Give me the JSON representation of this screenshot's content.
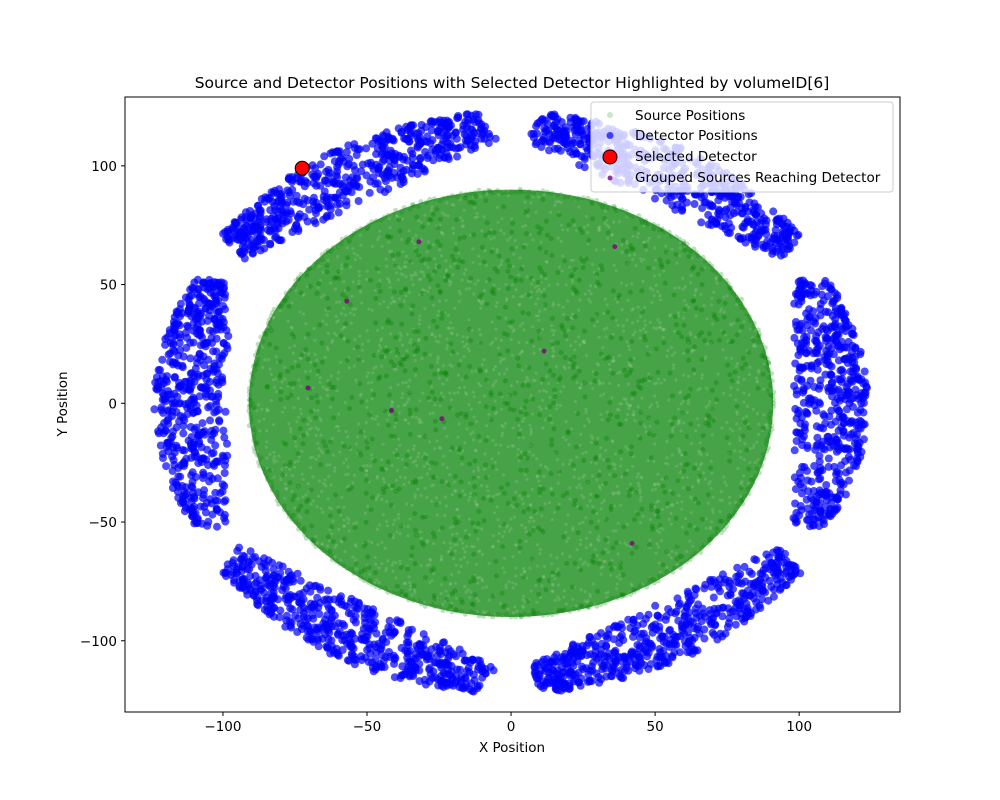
{
  "chart_data": {
    "type": "scatter",
    "title": "Source and Detector Positions with Selected Detector Highlighted by volumeID[6]",
    "xlabel": "X Position",
    "ylabel": "Y Position",
    "xlim": [
      -134,
      135
    ],
    "ylim": [
      -130,
      129
    ],
    "x_ticks": [
      {
        "value": -100,
        "label": "−100"
      },
      {
        "value": -50,
        "label": "−50"
      },
      {
        "value": 0,
        "label": "0"
      },
      {
        "value": 50,
        "label": "50"
      },
      {
        "value": 100,
        "label": "100"
      }
    ],
    "y_ticks": [
      {
        "value": -100,
        "label": "−100"
      },
      {
        "value": -50,
        "label": "−50"
      },
      {
        "value": 0,
        "label": "0"
      },
      {
        "value": 50,
        "label": "50"
      },
      {
        "value": 100,
        "label": "100"
      }
    ],
    "grid": false,
    "legend_position": "top-right",
    "series": [
      {
        "name": "Source Positions",
        "color": "#008000",
        "marker": "circle",
        "opacity": 0.2,
        "distribution": {
          "shape": "filled-ellipse",
          "center": [
            0,
            0
          ],
          "semi_axes": [
            91,
            90
          ],
          "approx_points": 50000
        }
      },
      {
        "name": "Detector Positions",
        "color": "#0000ff",
        "marker": "circle",
        "opacity": 0.7,
        "clusters": [
          {
            "side": "left",
            "x_range": [
              -124,
              -98
            ],
            "y_range": [
              -52,
              52
            ]
          },
          {
            "side": "right",
            "x_range": [
              98,
              124
            ],
            "y_range": [
              -52,
              52
            ]
          },
          {
            "side": "upper-left",
            "from": [
              -94,
              60
            ],
            "to": [
              -5,
              111
            ],
            "thickness": 24
          },
          {
            "side": "upper-right",
            "from": [
              5,
              111
            ],
            "to": [
              94,
              60
            ],
            "thickness": 24
          },
          {
            "side": "lower-left",
            "from": [
              -94,
              -60
            ],
            "to": [
              -5,
              -111
            ],
            "thickness": 24
          },
          {
            "side": "lower-right",
            "from": [
              5,
              -111
            ],
            "to": [
              94,
              -60
            ],
            "thickness": 24
          }
        ]
      },
      {
        "name": "Selected Detector",
        "color": "#ff0000",
        "edgecolor": "#000000",
        "marker": "circle",
        "points": [
          {
            "x": -72.5,
            "y": 99
          }
        ]
      },
      {
        "name": "Grouped Sources Reaching Detector",
        "color": "#800080",
        "marker": "circle",
        "points": [
          {
            "x": -32,
            "y": 68
          },
          {
            "x": 36,
            "y": 66
          },
          {
            "x": -57,
            "y": 43
          },
          {
            "x": 11.5,
            "y": 22
          },
          {
            "x": -70.5,
            "y": 6.5
          },
          {
            "x": -41.5,
            "y": -3
          },
          {
            "x": -24,
            "y": -6.5
          },
          {
            "x": 42,
            "y": -59
          }
        ]
      }
    ]
  }
}
